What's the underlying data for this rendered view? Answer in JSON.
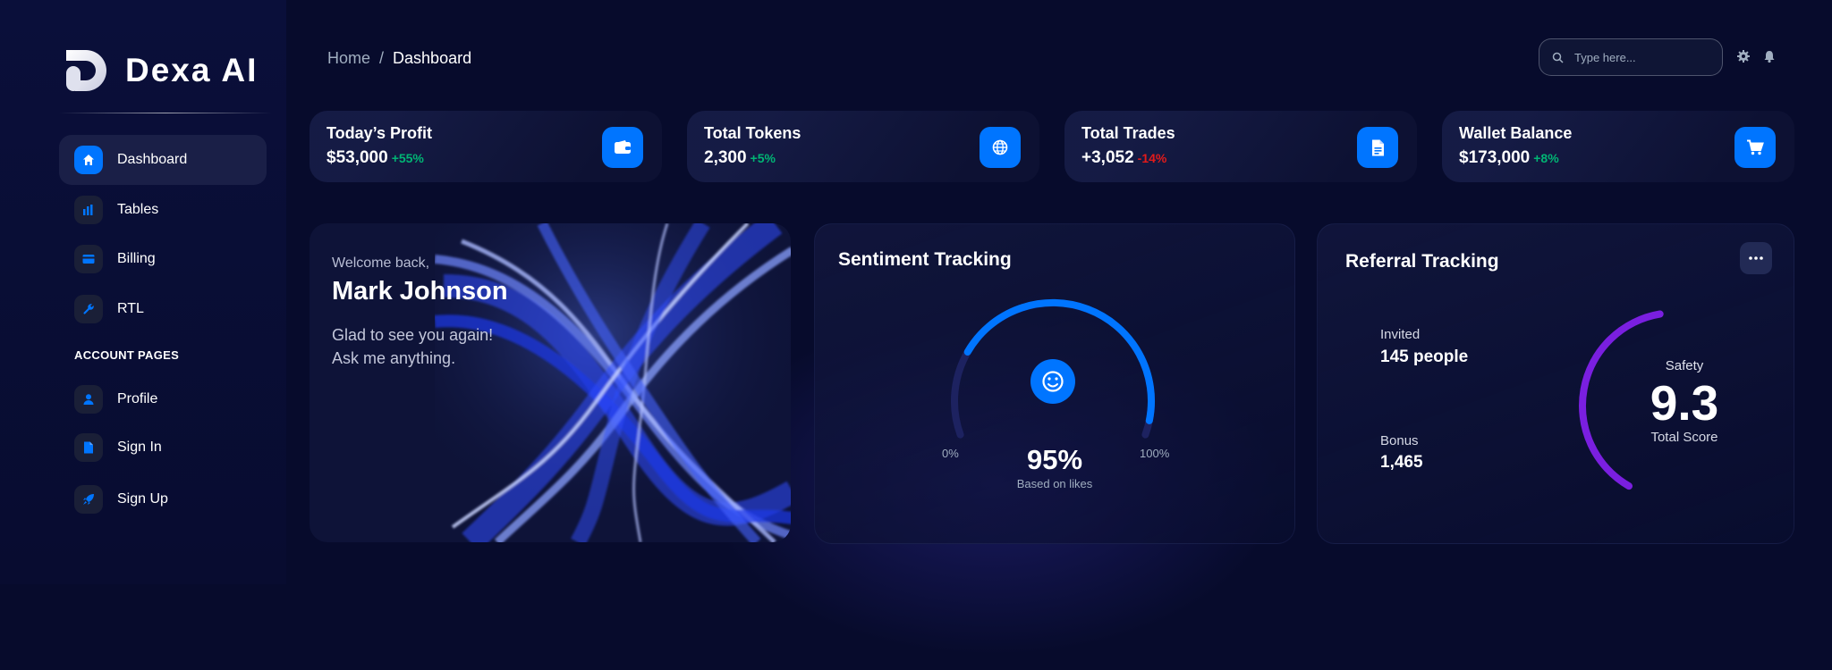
{
  "brand": {
    "name": "Dexa AI"
  },
  "sidebar": {
    "items": [
      {
        "label": "Dashboard",
        "icon": "home-icon",
        "active": true
      },
      {
        "label": "Tables",
        "icon": "bar-chart-icon"
      },
      {
        "label": "Billing",
        "icon": "credit-card-icon"
      },
      {
        "label": "RTL",
        "icon": "wrench-icon"
      }
    ],
    "section_label": "ACCOUNT PAGES",
    "account_items": [
      {
        "label": "Profile",
        "icon": "person-icon"
      },
      {
        "label": "Sign In",
        "icon": "document-icon"
      },
      {
        "label": "Sign Up",
        "icon": "rocket-icon"
      }
    ]
  },
  "header": {
    "breadcrumb": {
      "home": "Home",
      "separator": "/",
      "current": "Dashboard"
    },
    "search": {
      "placeholder": "Type here...",
      "value": ""
    }
  },
  "stats": [
    {
      "title": "Today’s Profit",
      "value": "$53,000",
      "change": "+55%",
      "trend": "up",
      "icon": "wallet-icon"
    },
    {
      "title": "Total Tokens",
      "value": "2,300",
      "change": "+5%",
      "trend": "up",
      "icon": "globe-icon"
    },
    {
      "title": "Total Trades",
      "value": "+3,052",
      "change": "-14%",
      "trend": "down",
      "icon": "file-icon"
    },
    {
      "title": "Wallet Balance",
      "value": "$173,000",
      "change": "+8%",
      "trend": "up",
      "icon": "cart-icon"
    }
  ],
  "welcome": {
    "greeting": "Welcome back,",
    "name": "Mark Johnson",
    "line1": "Glad to see you again!",
    "line2": "Ask me anything."
  },
  "sentiment": {
    "title": "Sentiment Tracking",
    "percent": "95%",
    "subtitle": "Based on likes",
    "min_label": "0%",
    "max_label": "100%",
    "icon": "smile-icon",
    "fraction": 0.95
  },
  "referral": {
    "title": "Referral Tracking",
    "invited_label": "Invited",
    "invited_value": "145 people",
    "bonus_label": "Bonus",
    "bonus_value": "1,465",
    "safety_label": "Safety",
    "safety_score": "9.3",
    "safety_sub": "Total Score",
    "score_fraction": 0.93
  },
  "colors": {
    "accent": "#0075ff",
    "positive": "#01b574",
    "negative": "#e31a1a",
    "gauge_purple": "#7a1fe0"
  }
}
